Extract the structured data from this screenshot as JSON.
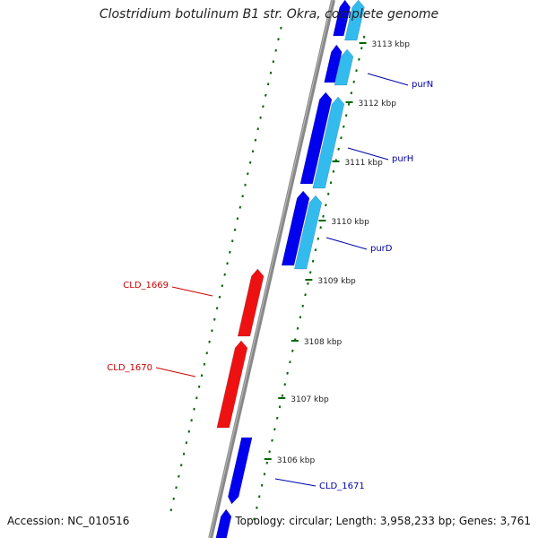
{
  "title": "Clostridium botulinum B1 str. Okra, complete genome",
  "footer": {
    "accession_label": "Accession:",
    "accession": "NC_010516",
    "topology_label": "Topology:",
    "topology": "circular",
    "length_label": "Length:",
    "length": "3,958,233 bp",
    "genes_label": "Genes:",
    "genes": "3,761"
  },
  "colors": {
    "forward_gene": "#0000ee",
    "forward_rna": "#33bbee",
    "reverse_gene": "#ee1111",
    "backbone": "#888888",
    "ticks": "#006600",
    "label_forward": "#0000aa",
    "label_reverse": "#cc0000"
  },
  "ticks": [
    "3106 kbp",
    "3107 kbp",
    "3108 kbp",
    "3109 kbp",
    "3110 kbp",
    "3111 kbp",
    "3112 kbp",
    "3113 kbp"
  ],
  "gene_labels": [
    {
      "label": "purN",
      "strand": "forward"
    },
    {
      "label": "purH",
      "strand": "forward"
    },
    {
      "label": "purD",
      "strand": "forward"
    },
    {
      "label": "CLD_1669",
      "strand": "reverse"
    },
    {
      "label": "CLD_1670",
      "strand": "reverse"
    },
    {
      "label": "CLD_1671",
      "strand": "forward"
    }
  ]
}
